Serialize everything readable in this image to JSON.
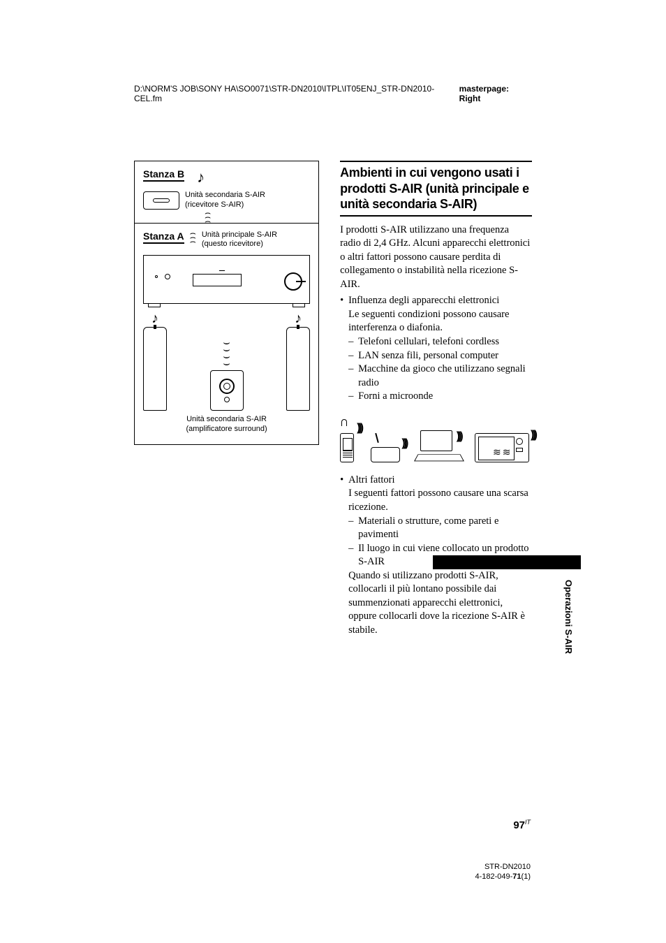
{
  "header": {
    "path": "D:\\NORM'S JOB\\SONY HA\\SO0071\\STR-DN2010\\ITPL\\IT05ENJ_STR-DN2010-CEL.fm",
    "masterpage": "masterpage: Right"
  },
  "diagram": {
    "stanzaB": {
      "label": "Stanza B",
      "device": "Unità secondaria S-AIR\n(ricevitore S-AIR)"
    },
    "stanzaA": {
      "label": "Stanza A",
      "main": "Unità principale S-AIR\n(questo ricevitore)",
      "sub": "Unità secondaria S-AIR\n(amplificatore surround)"
    }
  },
  "heading": "Ambienti in cui vengono usati i prodotti S-AIR (unità principale e unità secondaria S-AIR)",
  "intro": "I prodotti S-AIR utilizzano una frequenza radio di 2,4 GHz. Alcuni apparecchi elettronici o altri fattori possono causare perdita di collegamento o instabilità nella ricezione S-AIR.",
  "bullet1": {
    "lead": "Influenza degli apparecchi elettronici",
    "sub": "Le seguenti condizioni possono causare interferenza o diafonia.",
    "items": [
      "Telefoni cellulari, telefoni cordless",
      "LAN senza fili, personal computer",
      "Macchine da gioco che utilizzano segnali radio",
      "Forni a microonde"
    ]
  },
  "bullet2": {
    "lead": "Altri fattori",
    "sub": "I seguenti fattori possono causare una scarsa ricezione.",
    "items": [
      "Materiali o strutture, come pareti e pavimenti",
      "Il luogo in cui viene collocato un prodotto S-AIR"
    ],
    "trail": "Quando si utilizzano prodotti S-AIR, collocarli il più lontano possibile dai summenzionati apparecchi elettronici, oppure collocarli dove la ricezione S-AIR è stabile."
  },
  "sideTab": "Operazioni S-AIR",
  "pageNum": "97",
  "pageLang": "IT",
  "footer": {
    "model": "STR-DN2010",
    "code1": "4-182-049-",
    "codebold": "71",
    "code2": "(1)"
  }
}
